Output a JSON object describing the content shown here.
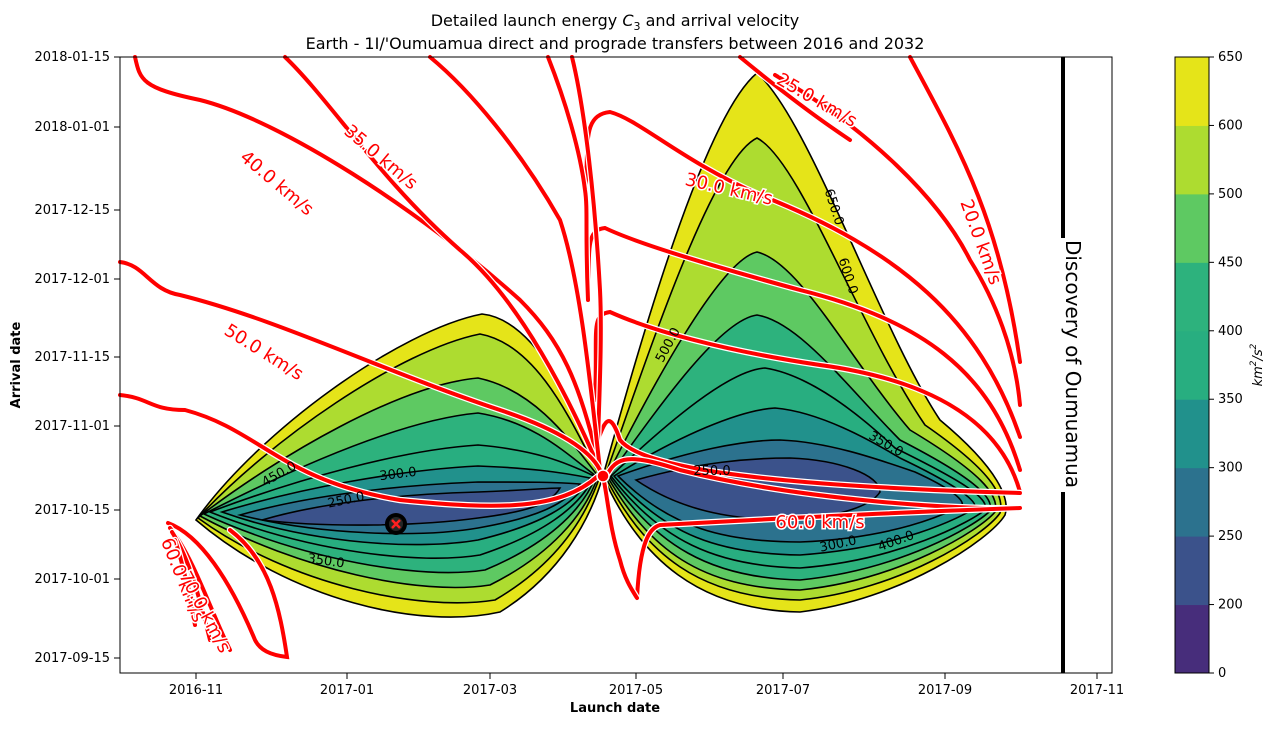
{
  "chart_data": {
    "type": "contour",
    "title": "Detailed launch energy C3 and arrival velocity",
    "title_prefix": "Detailed launch energy ",
    "title_symbol": "C",
    "title_symbol_sub": "3",
    "title_suffix": " and arrival velocity",
    "subtitle": "Earth - 1I/'Oumuamua direct and prograde transfers between 2016 and 2032",
    "xlabel": "Launch date",
    "ylabel": "Arrival date",
    "x_ticks": [
      "2016-11",
      "2017-01",
      "2017-03",
      "2017-05",
      "2017-07",
      "2017-09",
      "2017-11"
    ],
    "y_ticks": [
      "2018-01-15",
      "2018-01-01",
      "2017-12-15",
      "2017-12-01",
      "2017-11-15",
      "2017-11-01",
      "2017-10-15",
      "2017-10-01",
      "2017-09-15"
    ],
    "xlim": [
      "2016-10-01",
      "2017-11-10"
    ],
    "ylim": [
      "2017-09-12",
      "2018-01-15"
    ],
    "grid": false,
    "colorbar": {
      "label": "km²/s²",
      "label_base": "km",
      "label_mid": "/s",
      "label_exp": "2",
      "ticks": [
        "0",
        "200",
        "250",
        "300",
        "350",
        "400",
        "450",
        "500",
        "600",
        "650"
      ],
      "levels": [
        0,
        200,
        250,
        300,
        350,
        400,
        450,
        500,
        600,
        650
      ],
      "colors": [
        "#472d7b",
        "#3b528b",
        "#2c728e",
        "#21918c",
        "#28ae80",
        "#2db27d",
        "#5ec962",
        "#addc30",
        "#e5e419"
      ]
    },
    "c3_contour_labels": [
      "250.0",
      "300.0",
      "350.0",
      "400.0",
      "450.0",
      "500.0",
      "600.0",
      "650.0"
    ],
    "velocity_contours": [
      {
        "label": "20.0 km/s",
        "value": 20.0
      },
      {
        "label": "25.0 km/s",
        "value": 25.0
      },
      {
        "label": "30.0 km/s",
        "value": 30.0
      },
      {
        "label": "35.0 km/s",
        "value": 35.0
      },
      {
        "label": "40.0 km/s",
        "value": 40.0
      },
      {
        "label": "50.0 km/s",
        "value": 50.0
      },
      {
        "label": "60.0 km/s",
        "value": 60.0
      },
      {
        "label": "60.0 km/s",
        "value": 60.0
      },
      {
        "label": "70.0 km/s",
        "value": 70.0
      }
    ],
    "optimum_marker": {
      "launch": "2017-01-23",
      "arrival": "2017-10-13"
    },
    "singularity_point": {
      "launch": "2017-04-14",
      "arrival": "2017-10-20"
    },
    "annotation": {
      "text": "Discovery of Oumuamua",
      "date": "2017-10-19"
    },
    "accent_colors": {
      "velocity": "#ff0000",
      "outline": "#000000"
    }
  }
}
